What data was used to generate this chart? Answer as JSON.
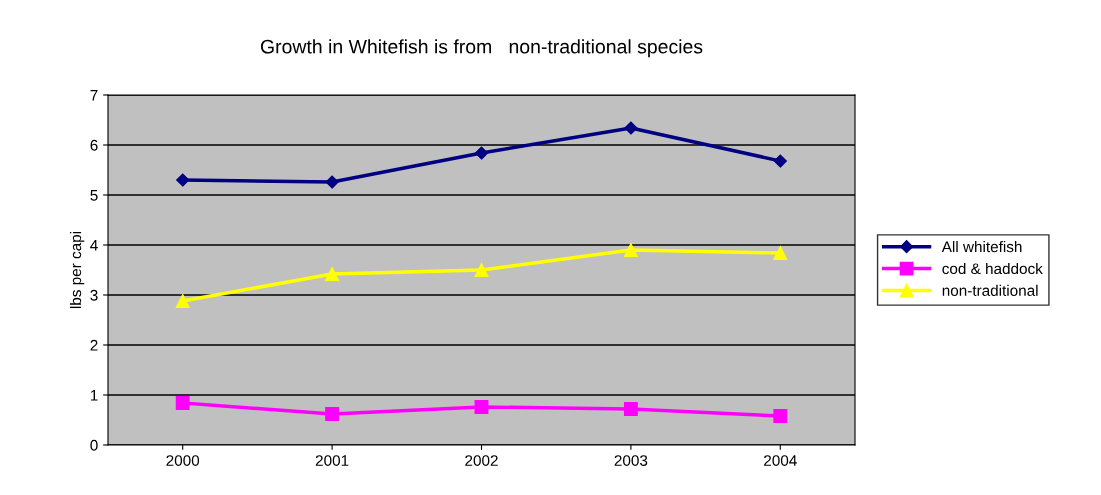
{
  "chart_data": {
    "type": "line",
    "title": "Growth in Whitefish is from   non-traditional species",
    "ylabel": "lbs per capi",
    "categories": [
      "2000",
      "2001",
      "2002",
      "2003",
      "2004"
    ],
    "series": [
      {
        "name": "All whitefish",
        "color": "#000080",
        "marker": "diamond",
        "values": [
          5.3,
          5.26,
          5.84,
          6.34,
          5.68
        ]
      },
      {
        "name": "cod & haddock",
        "color": "#ff00ff",
        "marker": "square",
        "values": [
          0.84,
          0.62,
          0.76,
          0.72,
          0.58
        ]
      },
      {
        "name": "non-traditional",
        "color": "#ffff00",
        "marker": "triangle",
        "values": [
          2.88,
          3.42,
          3.5,
          3.9,
          3.84
        ]
      }
    ],
    "ylim": [
      0,
      7
    ],
    "yticks": [
      0,
      1,
      2,
      3,
      4,
      5,
      6,
      7
    ],
    "grid": "y",
    "legend": "right",
    "line_style": "solid"
  }
}
